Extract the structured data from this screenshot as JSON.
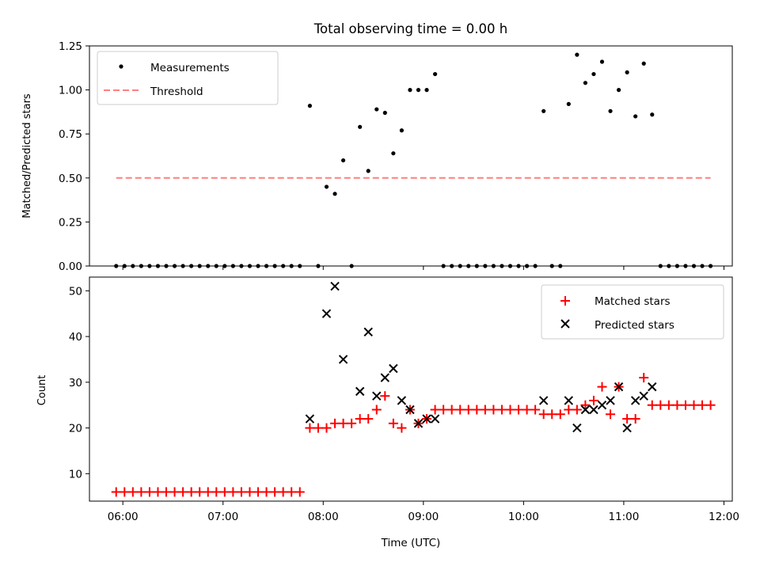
{
  "chart_data": [
    {
      "type": "scatter",
      "title": "Total observing time = 0.00 h",
      "ylabel": "Matched/Predicted stars",
      "ylim": [
        0,
        1.25
      ],
      "yticks": [
        "0.00",
        "0.25",
        "0.50",
        "0.75",
        "1.00",
        "1.25"
      ],
      "legend": "upper left",
      "series": [
        {
          "name": "Measurements",
          "marker": "dot",
          "color": "#000000",
          "points": [
            [
              "05:56",
              0
            ],
            [
              "06:01",
              0
            ],
            [
              "06:06",
              0
            ],
            [
              "06:11",
              0
            ],
            [
              "06:16",
              0
            ],
            [
              "06:21",
              0
            ],
            [
              "06:26",
              0
            ],
            [
              "06:31",
              0
            ],
            [
              "06:36",
              0
            ],
            [
              "06:41",
              0
            ],
            [
              "06:46",
              0
            ],
            [
              "06:51",
              0
            ],
            [
              "06:56",
              0
            ],
            [
              "07:01",
              0
            ],
            [
              "07:06",
              0
            ],
            [
              "07:11",
              0
            ],
            [
              "07:16",
              0
            ],
            [
              "07:21",
              0
            ],
            [
              "07:26",
              0
            ],
            [
              "07:31",
              0
            ],
            [
              "07:36",
              0
            ],
            [
              "07:41",
              0
            ],
            [
              "07:46",
              0
            ],
            [
              "07:52",
              0.91
            ],
            [
              "07:57",
              0
            ],
            [
              "08:02",
              0.45
            ],
            [
              "08:07",
              0.41
            ],
            [
              "08:12",
              0.6
            ],
            [
              "08:17",
              0
            ],
            [
              "08:22",
              0.79
            ],
            [
              "08:27",
              0.54
            ],
            [
              "08:32",
              0.89
            ],
            [
              "08:37",
              0.87
            ],
            [
              "08:42",
              0.64
            ],
            [
              "08:47",
              0.77
            ],
            [
              "08:52",
              1.0
            ],
            [
              "08:57",
              1.0
            ],
            [
              "09:02",
              1.0
            ],
            [
              "09:07",
              1.09
            ],
            [
              "09:12",
              0
            ],
            [
              "09:17",
              0
            ],
            [
              "09:22",
              0
            ],
            [
              "09:27",
              0
            ],
            [
              "09:32",
              0
            ],
            [
              "09:37",
              0
            ],
            [
              "09:42",
              0
            ],
            [
              "09:47",
              0
            ],
            [
              "09:52",
              0
            ],
            [
              "09:57",
              0
            ],
            [
              "10:02",
              0
            ],
            [
              "10:07",
              0
            ],
            [
              "10:12",
              0.88
            ],
            [
              "10:17",
              0
            ],
            [
              "10:22",
              0
            ],
            [
              "10:27",
              0.92
            ],
            [
              "10:32",
              1.2
            ],
            [
              "10:37",
              1.04
            ],
            [
              "10:42",
              1.09
            ],
            [
              "10:47",
              1.16
            ],
            [
              "10:52",
              0.88
            ],
            [
              "10:57",
              1.0
            ],
            [
              "11:02",
              1.1
            ],
            [
              "11:07",
              0.85
            ],
            [
              "11:12",
              1.15
            ],
            [
              "11:17",
              0.86
            ],
            [
              "11:22",
              0
            ],
            [
              "11:27",
              0
            ],
            [
              "11:32",
              0
            ],
            [
              "11:37",
              0
            ],
            [
              "11:42",
              0
            ],
            [
              "11:47",
              0
            ],
            [
              "11:52",
              0
            ]
          ]
        },
        {
          "name": "Threshold",
          "style": "dashed",
          "color": "#ff7f7f",
          "points": [
            [
              "05:56",
              0.5
            ],
            [
              "11:52",
              0.5
            ]
          ]
        }
      ]
    },
    {
      "type": "scatter",
      "xlabel": "Time (UTC)",
      "ylabel": "Count",
      "ylim": [
        4,
        53
      ],
      "yticks": [
        "10",
        "20",
        "30",
        "40",
        "50"
      ],
      "xlim": [
        "05:40",
        "12:05"
      ],
      "xticks": [
        "06:00",
        "07:00",
        "08:00",
        "09:00",
        "10:00",
        "11:00",
        "12:00"
      ],
      "legend": "upper right",
      "series": [
        {
          "name": "Matched stars",
          "marker": "+",
          "color": "#ff0000",
          "points": [
            [
              "05:56",
              6
            ],
            [
              "06:01",
              6
            ],
            [
              "06:06",
              6
            ],
            [
              "06:11",
              6
            ],
            [
              "06:16",
              6
            ],
            [
              "06:21",
              6
            ],
            [
              "06:26",
              6
            ],
            [
              "06:31",
              6
            ],
            [
              "06:36",
              6
            ],
            [
              "06:41",
              6
            ],
            [
              "06:46",
              6
            ],
            [
              "06:51",
              6
            ],
            [
              "06:56",
              6
            ],
            [
              "07:01",
              6
            ],
            [
              "07:06",
              6
            ],
            [
              "07:11",
              6
            ],
            [
              "07:16",
              6
            ],
            [
              "07:21",
              6
            ],
            [
              "07:26",
              6
            ],
            [
              "07:31",
              6
            ],
            [
              "07:36",
              6
            ],
            [
              "07:41",
              6
            ],
            [
              "07:46",
              6
            ],
            [
              "07:52",
              20
            ],
            [
              "07:57",
              20
            ],
            [
              "08:02",
              20
            ],
            [
              "08:07",
              21
            ],
            [
              "08:12",
              21
            ],
            [
              "08:17",
              21
            ],
            [
              "08:22",
              22
            ],
            [
              "08:27",
              22
            ],
            [
              "08:32",
              24
            ],
            [
              "08:37",
              27
            ],
            [
              "08:42",
              21
            ],
            [
              "08:47",
              20
            ],
            [
              "08:52",
              24
            ],
            [
              "08:57",
              21
            ],
            [
              "09:02",
              22
            ],
            [
              "09:07",
              24
            ],
            [
              "09:12",
              24
            ],
            [
              "09:17",
              24
            ],
            [
              "09:22",
              24
            ],
            [
              "09:27",
              24
            ],
            [
              "09:32",
              24
            ],
            [
              "09:37",
              24
            ],
            [
              "09:42",
              24
            ],
            [
              "09:47",
              24
            ],
            [
              "09:52",
              24
            ],
            [
              "09:57",
              24
            ],
            [
              "10:02",
              24
            ],
            [
              "10:07",
              24
            ],
            [
              "10:12",
              23
            ],
            [
              "10:17",
              23
            ],
            [
              "10:22",
              23
            ],
            [
              "10:27",
              24
            ],
            [
              "10:32",
              24
            ],
            [
              "10:37",
              25
            ],
            [
              "10:42",
              26
            ],
            [
              "10:47",
              29
            ],
            [
              "10:52",
              23
            ],
            [
              "10:57",
              29
            ],
            [
              "11:02",
              22
            ],
            [
              "11:07",
              22
            ],
            [
              "11:12",
              31
            ],
            [
              "11:17",
              25
            ],
            [
              "11:22",
              25
            ],
            [
              "11:27",
              25
            ],
            [
              "11:32",
              25
            ],
            [
              "11:37",
              25
            ],
            [
              "11:42",
              25
            ],
            [
              "11:47",
              25
            ],
            [
              "11:52",
              25
            ]
          ]
        },
        {
          "name": "Predicted stars",
          "marker": "x",
          "color": "#000000",
          "points": [
            [
              "07:52",
              22
            ],
            [
              "08:02",
              45
            ],
            [
              "08:07",
              51
            ],
            [
              "08:12",
              35
            ],
            [
              "08:22",
              28
            ],
            [
              "08:27",
              41
            ],
            [
              "08:32",
              27
            ],
            [
              "08:37",
              31
            ],
            [
              "08:42",
              33
            ],
            [
              "08:47",
              26
            ],
            [
              "08:52",
              24
            ],
            [
              "08:57",
              21
            ],
            [
              "09:02",
              22
            ],
            [
              "09:07",
              22
            ],
            [
              "10:12",
              26
            ],
            [
              "10:27",
              26
            ],
            [
              "10:32",
              20
            ],
            [
              "10:37",
              24
            ],
            [
              "10:42",
              24
            ],
            [
              "10:47",
              25
            ],
            [
              "10:52",
              26
            ],
            [
              "10:57",
              29
            ],
            [
              "11:02",
              20
            ],
            [
              "11:07",
              26
            ],
            [
              "11:12",
              27
            ],
            [
              "11:17",
              29
            ]
          ]
        }
      ]
    }
  ]
}
